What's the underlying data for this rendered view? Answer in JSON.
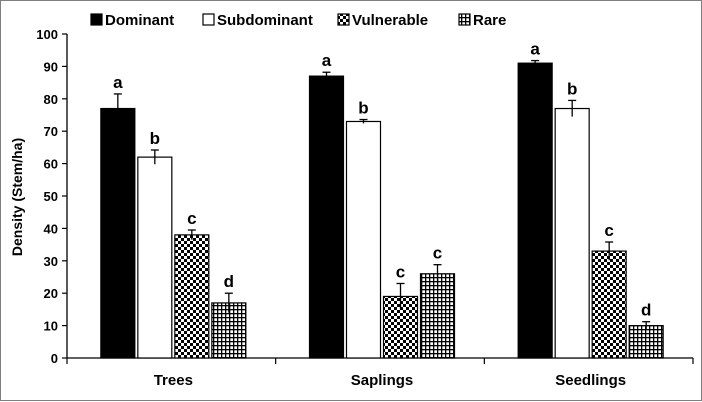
{
  "chart_data": {
    "type": "bar",
    "title": "",
    "xlabel": "",
    "ylabel": "Density (Stem/ha)",
    "ylim": [
      0,
      100
    ],
    "yticks": [
      0,
      10,
      20,
      30,
      40,
      50,
      60,
      70,
      80,
      90,
      100
    ],
    "categories": [
      "Trees",
      "Saplings",
      "Seedlings"
    ],
    "legend_position": "top",
    "series": [
      {
        "name": "Dominant",
        "pattern": "solid-black",
        "values": [
          77,
          87,
          91
        ],
        "errors": [
          4.5,
          1.2,
          0.8
        ],
        "labels": [
          "a",
          "a",
          "a"
        ]
      },
      {
        "name": "Subdominant",
        "pattern": "white",
        "values": [
          62,
          73,
          77
        ],
        "errors": [
          2.2,
          0.6,
          2.5
        ],
        "labels": [
          "b",
          "b",
          "b"
        ]
      },
      {
        "name": "Vulnerable",
        "pattern": "checker",
        "values": [
          38,
          19,
          33
        ],
        "errors": [
          1.5,
          4.0,
          2.8
        ],
        "labels": [
          "c",
          "c",
          "c"
        ]
      },
      {
        "name": "Rare",
        "pattern": "grid",
        "values": [
          17,
          26,
          10
        ],
        "errors": [
          3.0,
          2.8,
          1.2
        ],
        "labels": [
          "d",
          "c",
          "d"
        ]
      }
    ]
  }
}
